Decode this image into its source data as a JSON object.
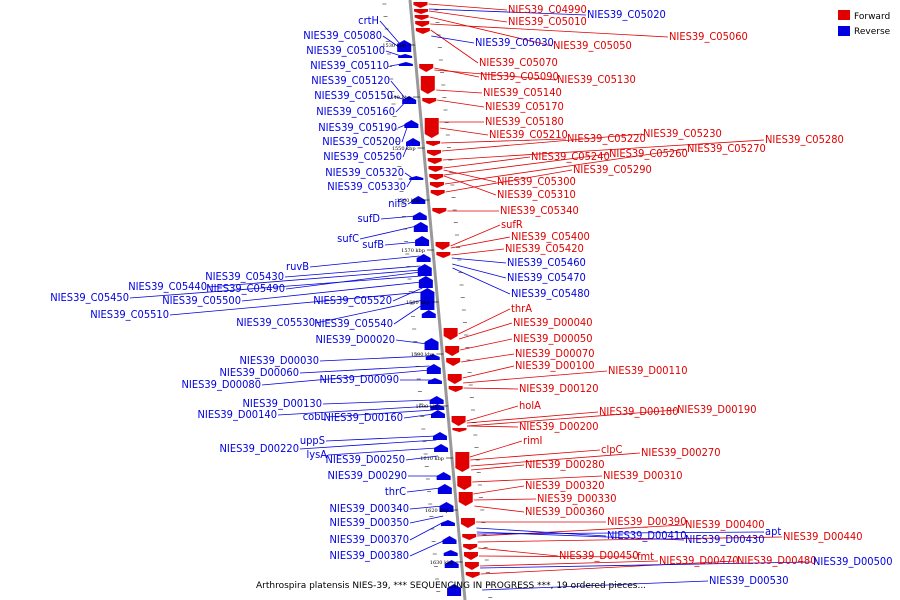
{
  "colors": {
    "forward": "#e00000",
    "reverse": "#0000e0",
    "axis": "#999999"
  },
  "legend": {
    "forward": "Forward",
    "reverse": "Reverse"
  },
  "caption": "Arthrospira platensis NIES-39, *** SEQUENCING IN PROGRESS ***, 19 ordered pieces...",
  "ticks": [
    "1530 kbp",
    "1540 kbp",
    "1550 kbp",
    "1560 kbp",
    "1570 kbp",
    "1580 kbp",
    "1590 kbp",
    "1600 kbp",
    "1610 kbp",
    "1620 kbp",
    "1630 kbp"
  ],
  "forward_labels": [
    "NIES39_C04990",
    "NIES39_C05010",
    "NIES39_C05050",
    "NIES39_C05060",
    "NIES39_C05070",
    "NIES39_C05090",
    "NIES39_C05130",
    "NIES39_C05140",
    "NIES39_C05170",
    "NIES39_C05180",
    "NIES39_C05210",
    "NIES39_C05220",
    "NIES39_C05230",
    "NIES39_C05280",
    "NIES39_C05240",
    "NIES39_C05260",
    "NIES39_C05270",
    "NIES39_C05290",
    "NIES39_C05300",
    "NIES39_C05310",
    "NIES39_C05340",
    "sufR",
    "NIES39_C05400",
    "NIES39_C05420",
    "thrA",
    "NIES39_D00040",
    "NIES39_D00050",
    "NIES39_D00070",
    "NIES39_D00100",
    "NIES39_D00110",
    "NIES39_D00120",
    "holA",
    "NIES39_D00180",
    "NIES39_D00190",
    "NIES39_D00200",
    "rimI",
    "clpC",
    "NIES39_D00270",
    "NIES39_D00280",
    "NIES39_D00310",
    "NIES39_D00320",
    "NIES39_D00330",
    "NIES39_D00360",
    "NIES39_D00390",
    "NIES39_D00400",
    "NIES39_D00440",
    "NIES39_D00450",
    "fmt",
    "NIES39_D00470",
    "NIES39_D00480"
  ],
  "reverse_labels": [
    "crtH",
    "NIES39_C05080",
    "NIES39_C05100",
    "NIES39_C05110",
    "NIES39_C05120",
    "NIES39_C05150",
    "NIES39_C05160",
    "NIES39_C05190",
    "NIES39_C05200",
    "NIES39_C05250",
    "NIES39_C05320",
    "NIES39_C05330",
    "nifS",
    "sufD",
    "sufC",
    "sufB",
    "ruvB",
    "NIES39_C05430",
    "NIES39_C05440",
    "NIES39_C05490",
    "NIES39_C05450",
    "NIES39_C05500",
    "NIES39_C05520",
    "NIES39_C05510",
    "NIES39_C05530",
    "NIES39_C05540",
    "NIES39_D00020",
    "NIES39_D00030",
    "NIES39_D00060",
    "NIES39_D00080",
    "NIES39_D00090",
    "NIES39_D00130",
    "NIES39_D00140",
    "cobL",
    "NIES39_D00160",
    "uppS",
    "NIES39_D00220",
    "lysA",
    "NIES39_D00250",
    "NIES39_D00290",
    "thrC",
    "NIES39_D00340",
    "NIES39_D00350",
    "NIES39_D00370",
    "NIES39_D00380",
    "NIES39_C05020",
    "NIES39_C05030",
    "NIES39_C05460",
    "NIES39_C05470",
    "NIES39_C05480",
    "NIES39_D00410",
    "NIES39_D00430",
    "apt",
    "NIES39_D00500",
    "NIES39_D00530"
  ]
}
